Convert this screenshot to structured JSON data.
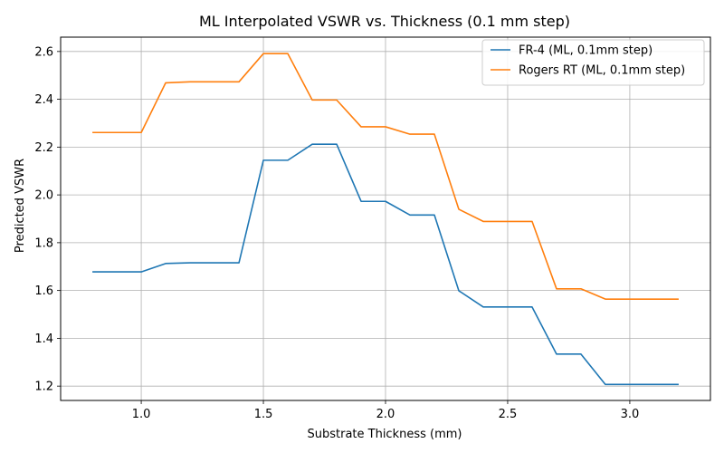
{
  "chart_data": {
    "type": "line",
    "title": "ML Interpolated VSWR vs. Thickness (0.1 mm step)",
    "xlabel": "Substrate Thickness (mm)",
    "ylabel": "Predicted VSWR",
    "xlim": [
      0.67,
      3.33
    ],
    "ylim": [
      1.14,
      2.66
    ],
    "xticks": [
      1.0,
      1.5,
      2.0,
      2.5,
      3.0
    ],
    "xtick_labels": [
      "1.0",
      "1.5",
      "2.0",
      "2.5",
      "3.0"
    ],
    "yticks": [
      1.2,
      1.4,
      1.6,
      1.8,
      2.0,
      2.2,
      2.4,
      2.6
    ],
    "ytick_labels": [
      "1.2",
      "1.4",
      "1.6",
      "1.8",
      "2.0",
      "2.2",
      "2.4",
      "2.6"
    ],
    "grid": true,
    "legend_position": "top-right",
    "x": [
      0.8,
      0.9,
      1.0,
      1.1,
      1.2,
      1.3,
      1.4,
      1.5,
      1.6,
      1.7,
      1.8,
      1.9,
      2.0,
      2.1,
      2.2,
      2.3,
      2.4,
      2.5,
      2.6,
      2.7,
      2.8,
      2.9,
      3.0,
      3.1,
      3.2
    ],
    "series": [
      {
        "name": "FR-4 (ML, 0.1mm step)",
        "color": "#1f77b4",
        "values": [
          1.678,
          1.678,
          1.678,
          1.713,
          1.716,
          1.716,
          1.716,
          2.145,
          2.145,
          2.212,
          2.212,
          1.973,
          1.973,
          1.916,
          1.916,
          1.599,
          1.531,
          1.531,
          1.531,
          1.334,
          1.334,
          1.207,
          1.207,
          1.207,
          1.207
        ]
      },
      {
        "name": "Rogers RT (ML, 0.1mm step)",
        "color": "#ff7f0e",
        "values": [
          2.261,
          2.261,
          2.261,
          2.469,
          2.473,
          2.473,
          2.473,
          2.591,
          2.591,
          2.397,
          2.397,
          2.285,
          2.285,
          2.254,
          2.254,
          1.94,
          1.889,
          1.889,
          1.889,
          1.607,
          1.607,
          1.564,
          1.564,
          1.564,
          1.564
        ]
      }
    ]
  }
}
